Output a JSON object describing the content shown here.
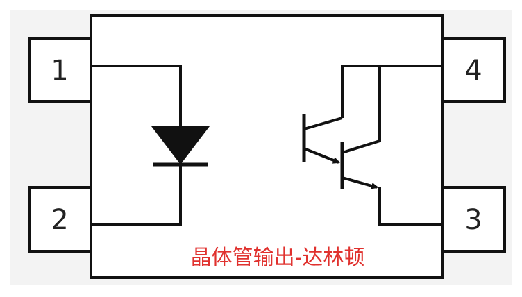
{
  "diagram": {
    "pins": [
      {
        "number": "1",
        "role": "anode"
      },
      {
        "number": "2",
        "role": "cathode"
      },
      {
        "number": "3",
        "role": "emitter"
      },
      {
        "number": "4",
        "role": "collector"
      }
    ],
    "caption": "晶体管输出-达林顿",
    "colors": {
      "line": "#111111",
      "background": "#f3f3f3",
      "caption": "#e0312e",
      "pin_text": "#222222"
    },
    "components": {
      "input": "led-diode-icon",
      "output": "darlington-phototransistor-icon"
    }
  }
}
